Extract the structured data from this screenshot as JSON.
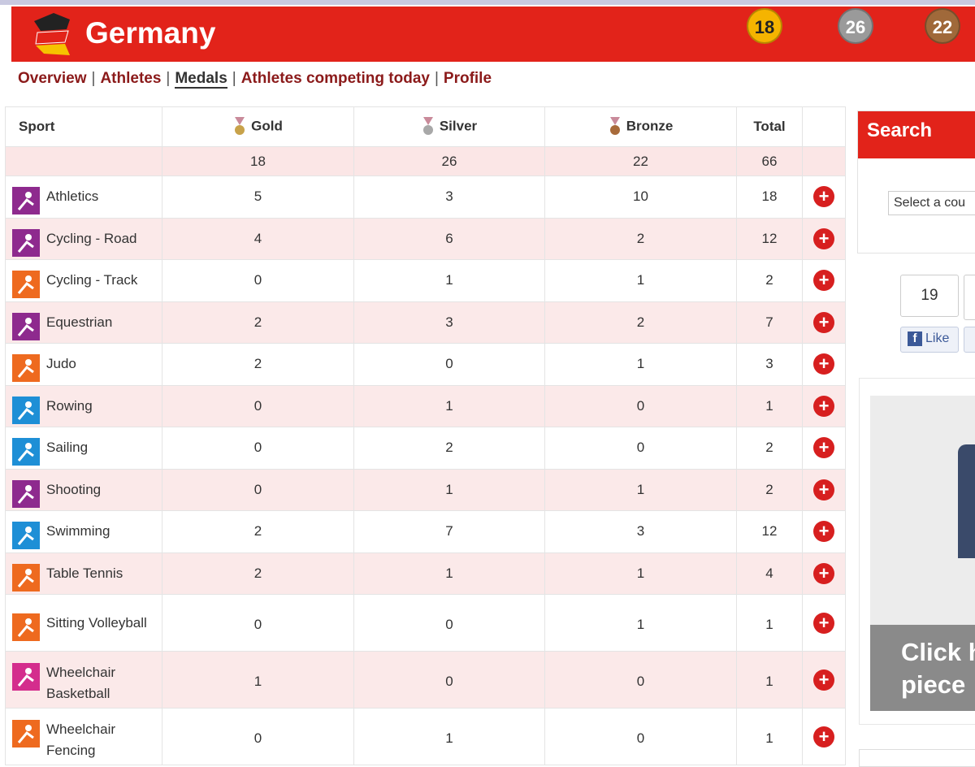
{
  "header": {
    "title": "Germany",
    "medals": [
      18,
      26,
      22
    ]
  },
  "nav": [
    "Overview",
    "Athletes",
    "Medals",
    "Athletes competing today",
    "Profile"
  ],
  "table": {
    "columns": [
      "Sport",
      "Gold",
      "Silver",
      "Bronze",
      "Total"
    ],
    "totals": [
      18,
      26,
      22,
      66
    ],
    "rows": [
      [
        "Athletics",
        5,
        3,
        10,
        18
      ],
      [
        "Cycling - Road",
        4,
        6,
        2,
        12
      ],
      [
        "Cycling - Track",
        0,
        1,
        1,
        2
      ],
      [
        "Equestrian",
        2,
        3,
        2,
        7
      ],
      [
        "Judo",
        2,
        0,
        1,
        3
      ],
      [
        "Rowing",
        0,
        1,
        0,
        1
      ],
      [
        "Sailing",
        0,
        2,
        0,
        2
      ],
      [
        "Shooting",
        0,
        1,
        1,
        2
      ],
      [
        "Swimming",
        2,
        7,
        3,
        12
      ],
      [
        "Table Tennis",
        2,
        1,
        1,
        4
      ],
      [
        "Sitting Volleyball",
        0,
        0,
        1,
        1
      ],
      [
        "Wheelchair Basketball",
        1,
        0,
        0,
        1
      ],
      [
        "Wheelchair Fencing",
        0,
        1,
        0,
        1
      ]
    ]
  },
  "sidebar": {
    "search_title": "Search",
    "select_placeholder": "Select a cou",
    "like_count": 19,
    "like_label": "Like",
    "ad_text": [
      "Click h",
      "piece"
    ]
  }
}
